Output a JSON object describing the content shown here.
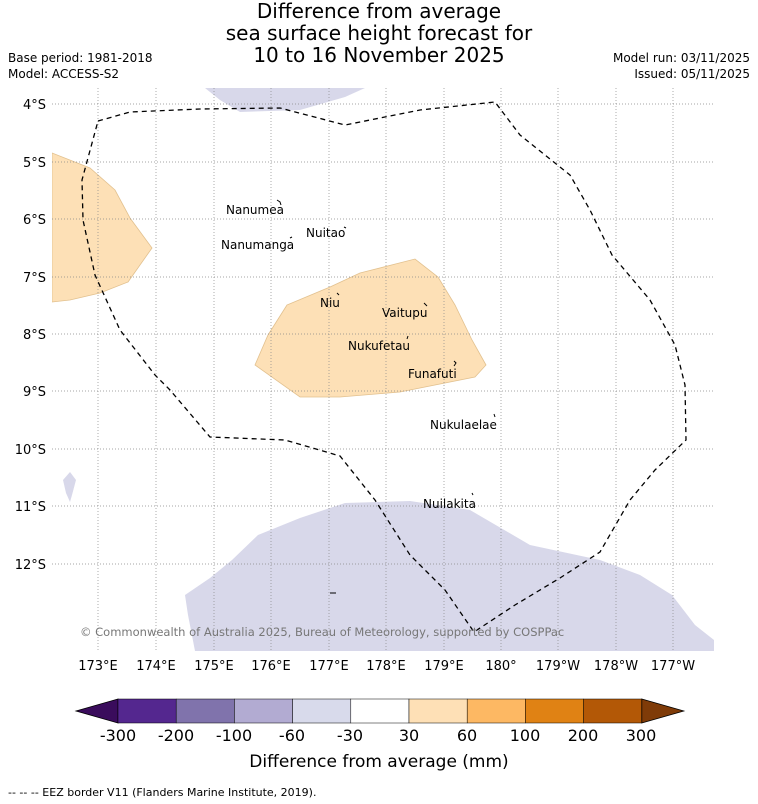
{
  "title": {
    "line1": "Difference from average",
    "line2": "sea surface height forecast for",
    "line3": "10 to 16 November 2025"
  },
  "meta": {
    "base_period": "Base period: 1981-2018",
    "model": "Model: ACCESS-S2",
    "model_run": "Model run: 03/11/2025",
    "issued": "Issued: 05/11/2025"
  },
  "map": {
    "latitude_labels": [
      "4°S",
      "5°S",
      "6°S",
      "7°S",
      "8°S",
      "9°S",
      "10°S",
      "11°S",
      "12°S"
    ],
    "longitude_labels": [
      "173°E",
      "174°E",
      "175°E",
      "176°E",
      "177°E",
      "178°E",
      "179°E",
      "180°",
      "179°W",
      "178°W",
      "177°W"
    ],
    "islands": [
      "Nanumea",
      "Nuitao",
      "Nanumanga",
      "Niu",
      "Vaitupu",
      "Nukufetau",
      "Funafuti",
      "Nukulaelae",
      "Nuilakita"
    ],
    "copyright": "© Commonwealth of Australia 2025, Bureau of Meteorology, supported by COSPPac",
    "colors": {
      "positive_30_60": "#fde0b6",
      "negative_60_30": "#d8d8ea",
      "grid": "#999999",
      "eez_border": "#000000"
    }
  },
  "colorbar": {
    "tick_labels": [
      "-300",
      "-200",
      "-100",
      "-60",
      "-30",
      "30",
      "60",
      "100",
      "200",
      "300"
    ],
    "colors": [
      "#3a0c5c",
      "#54278f",
      "#8073ac",
      "#b2abd2",
      "#d8daeb",
      "#ffffff",
      "#fee0b6",
      "#fdb863",
      "#e08214",
      "#b35806",
      "#7f3b08"
    ],
    "label": "Difference from average (mm)"
  },
  "footer": "-- -- -- EEZ border V11 (Flanders Marine Institute, 2019)."
}
